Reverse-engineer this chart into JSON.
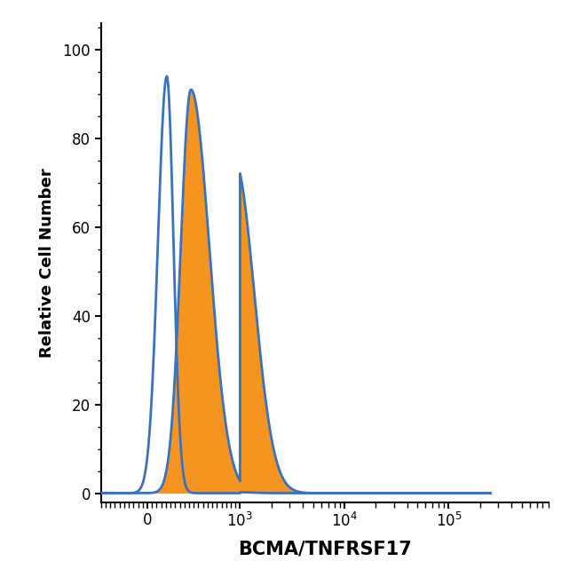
{
  "title": "",
  "xlabel": "BCMA/TNFRSF17",
  "ylabel": "Relative Cell Number",
  "ylim": [
    -2,
    106
  ],
  "yticks": [
    0,
    20,
    40,
    60,
    80,
    100
  ],
  "blue_color": "#3a72c0",
  "orange_color": "#f59520",
  "background_color": "#ffffff",
  "linewidth": 2.0,
  "xlabel_fontsize": 15,
  "ylabel_fontsize": 13,
  "tick_fontsize": 12,
  "symlog_linthresh": 1000,
  "symlog_linscale": 0.8,
  "xlim_left": -500,
  "xlim_right": 200000
}
